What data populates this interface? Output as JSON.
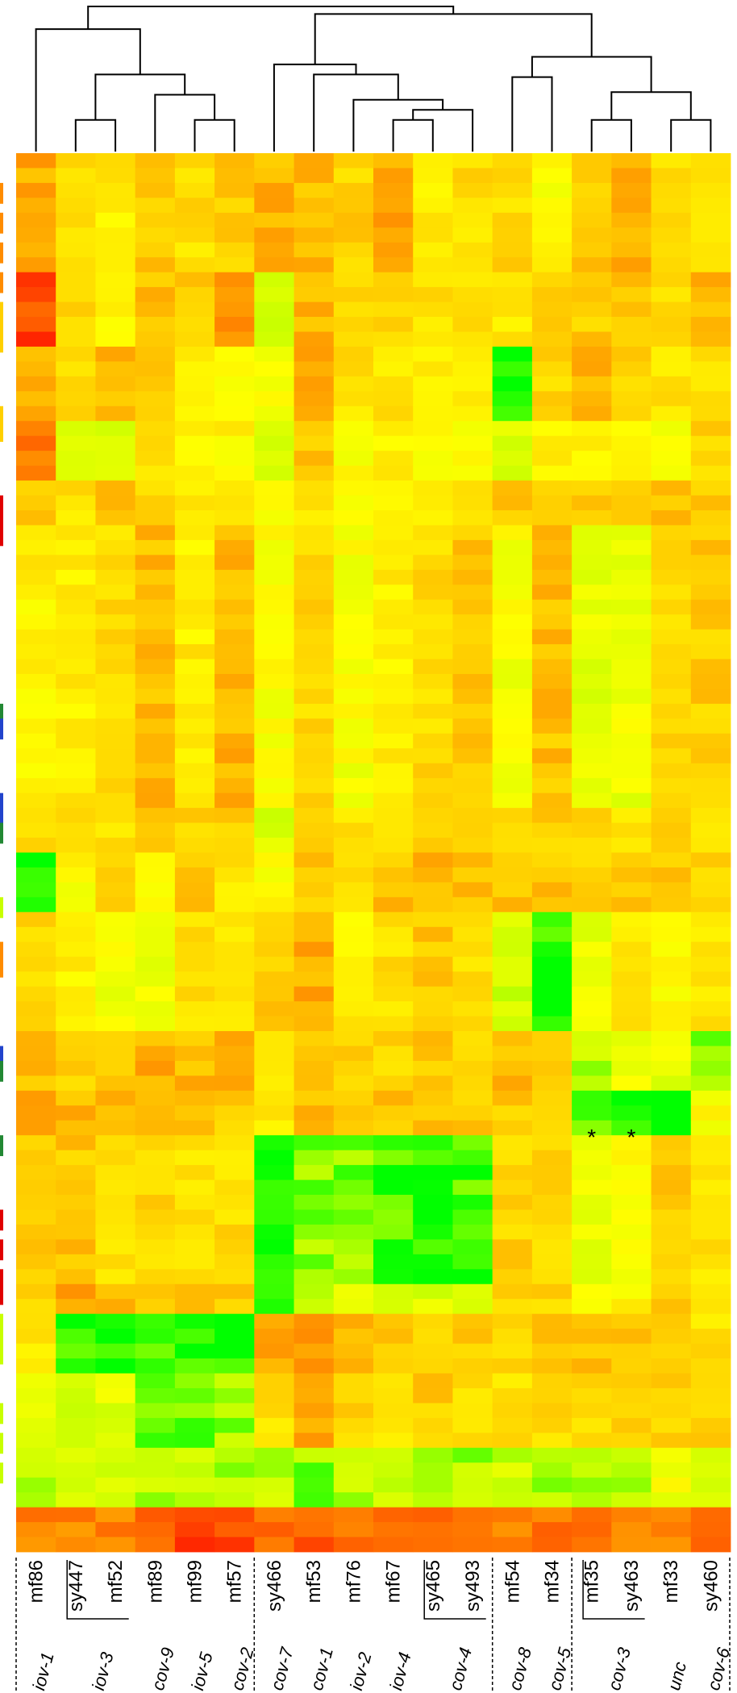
{
  "chart_data": {
    "type": "heatmap",
    "title": "",
    "xlabel": "",
    "ylabel": "",
    "color_scale": [
      "#ff2000",
      "#ff8c00",
      "#ffd000",
      "#ffff00",
      "#c8ff00",
      "#00ff00"
    ],
    "columns": [
      {
        "sample": "mf86",
        "group": "iov-1"
      },
      {
        "sample": "sy447",
        "group": "iov-3"
      },
      {
        "sample": "mf52",
        "group": "iov-3"
      },
      {
        "sample": "mf89",
        "group": "cov-9"
      },
      {
        "sample": "mf99",
        "group": "iov-5"
      },
      {
        "sample": "mf57",
        "group": "cov-2"
      },
      {
        "sample": "sy466",
        "group": "cov-7"
      },
      {
        "sample": "mf53",
        "group": "cov-1"
      },
      {
        "sample": "mf76",
        "group": "iov-2"
      },
      {
        "sample": "mf67",
        "group": "iov-4"
      },
      {
        "sample": "sy465",
        "group": "cov-4"
      },
      {
        "sample": "sy493",
        "group": "cov-4"
      },
      {
        "sample": "mf54",
        "group": "cov-8"
      },
      {
        "sample": "mf34",
        "group": "cov-5"
      },
      {
        "sample": "mf35",
        "group": "cov-3"
      },
      {
        "sample": "sy463",
        "group": "cov-3"
      },
      {
        "sample": "mf33",
        "group": "unc"
      },
      {
        "sample": "sy460",
        "group": "cov-6"
      }
    ],
    "group_labels": [
      {
        "text": "iov-1",
        "cols": [
          0,
          0
        ]
      },
      {
        "text": "iov-3",
        "cols": [
          1,
          2
        ]
      },
      {
        "text": "cov-9",
        "cols": [
          3,
          3
        ]
      },
      {
        "text": "iov-5",
        "cols": [
          4,
          4
        ]
      },
      {
        "text": "cov-2",
        "cols": [
          5,
          5
        ]
      },
      {
        "text": "cov-7",
        "cols": [
          6,
          6
        ]
      },
      {
        "text": "cov-1",
        "cols": [
          7,
          7
        ]
      },
      {
        "text": "iov-2",
        "cols": [
          8,
          8
        ]
      },
      {
        "text": "iov-4",
        "cols": [
          9,
          9
        ]
      },
      {
        "text": "cov-4",
        "cols": [
          10,
          11
        ]
      },
      {
        "text": "cov-8",
        "cols": [
          12,
          12
        ]
      },
      {
        "text": "cov-5",
        "cols": [
          13,
          13
        ]
      },
      {
        "text": "cov-3",
        "cols": [
          14,
          15
        ]
      },
      {
        "text": "unc",
        "cols": [
          16,
          16
        ]
      },
      {
        "text": "cov-6",
        "cols": [
          17,
          17
        ]
      }
    ],
    "dendrogram": {
      "merges": [
        [
          1,
          2,
          0.55
        ],
        [
          4,
          5,
          0.55
        ],
        [
          3,
          9,
          0.65
        ],
        [
          8,
          10,
          0.72
        ],
        [
          0,
          11,
          0.9
        ],
        [
          9,
          10,
          0.55
        ],
        [
          11,
          12,
          0.55
        ],
        [
          14,
          15,
          0.65
        ],
        [
          7,
          16,
          0.72
        ],
        [
          6,
          17,
          0.8
        ],
        [
          14,
          15,
          0.55
        ],
        [
          16,
          17,
          0.55
        ],
        [
          22,
          23,
          0.65
        ],
        [
          12,
          13,
          0.72
        ],
        [
          25,
          24,
          0.8
        ],
        [
          18,
          21,
          0.95
        ],
        [
          26,
          20,
          1.0
        ]
      ],
      "nodes": [
        {
          "id": 18,
          "cols": [
            1,
            2
          ],
          "h": 0.55
        },
        {
          "id": 19,
          "cols": [
            4,
            5
          ],
          "h": 0.55
        },
        {
          "id": 20,
          "cols": [
            3,
            4,
            5
          ],
          "h": 0.65
        },
        {
          "id": 21,
          "cols": [
            1,
            2,
            3,
            4,
            5
          ],
          "h": 0.72
        },
        {
          "id": 22,
          "cols": [
            0,
            1,
            2,
            3,
            4,
            5
          ],
          "h": 0.9
        }
      ],
      "tree": [
        {
          "a": 1,
          "b": 2,
          "h": 0.55,
          "id": "n1"
        },
        {
          "a": 4,
          "b": 5,
          "h": 0.55,
          "id": "n2"
        },
        {
          "a": 3,
          "b": "n2",
          "h": 0.65,
          "id": "n3"
        },
        {
          "a": "n1",
          "b": "n3",
          "h": 0.73,
          "id": "n4"
        },
        {
          "a": 0,
          "b": "n4",
          "h": 0.91,
          "id": "n5"
        },
        {
          "a": 9,
          "b": 10,
          "h": 0.55,
          "id": "n6"
        },
        {
          "a": 11,
          "b": "n6",
          "h": 0.59,
          "id": "n6b"
        },
        {
          "a": 8,
          "b": "n6b",
          "h": 0.63,
          "id": "n7"
        },
        {
          "a": 7,
          "b": "n7",
          "h": 0.73,
          "id": "n8"
        },
        {
          "a": 6,
          "b": "n8",
          "h": 0.77,
          "id": "n9"
        },
        {
          "a": 14,
          "b": 15,
          "h": 0.55,
          "id": "n10"
        },
        {
          "a": 16,
          "b": 17,
          "h": 0.55,
          "id": "n11"
        },
        {
          "a": "n10",
          "b": "n11",
          "h": 0.66,
          "id": "n12"
        },
        {
          "a": 12,
          "b": 13,
          "h": 0.72,
          "id": "n13"
        },
        {
          "a": "n13",
          "b": "n12",
          "h": 0.8,
          "id": "n14"
        },
        {
          "a": "n9",
          "b": "n14",
          "h": 0.97,
          "id": "n15"
        },
        {
          "a": "n5",
          "b": "n15",
          "h": 1.0,
          "id": "n16"
        }
      ]
    },
    "row_side_colors": [
      {
        "row": 2,
        "color": "#ff8c00"
      },
      {
        "row": 4,
        "color": "#ff8c00"
      },
      {
        "row": 6,
        "color": "#ff8c00"
      },
      {
        "row": 8,
        "color": "#ff8c00"
      },
      {
        "row": 10,
        "color": "#ffd000"
      },
      {
        "row": 11,
        "color": "#ffd000"
      },
      {
        "row": 12,
        "color": "#ffd000"
      },
      {
        "row": 17,
        "color": "#ffd000"
      },
      {
        "row": 18,
        "color": "#ffd000"
      },
      {
        "row": 23,
        "color": "#e00000"
      },
      {
        "row": 24,
        "color": "#e00000"
      },
      {
        "row": 25,
        "color": "#e00000"
      },
      {
        "row": 37,
        "color": "#228833"
      },
      {
        "row": 38,
        "color": "#2244cc"
      },
      {
        "row": 43,
        "color": "#2244cc"
      },
      {
        "row": 44,
        "color": "#2244cc"
      },
      {
        "row": 45,
        "color": "#228833"
      },
      {
        "row": 50,
        "color": "#c8ff00"
      },
      {
        "row": 53,
        "color": "#ff8c00"
      },
      {
        "row": 54,
        "color": "#ff8c00"
      },
      {
        "row": 60,
        "color": "#2244cc"
      },
      {
        "row": 61,
        "color": "#228833"
      },
      {
        "row": 66,
        "color": "#228833"
      },
      {
        "row": 71,
        "color": "#e00000"
      },
      {
        "row": 73,
        "color": "#e00000"
      },
      {
        "row": 75,
        "color": "#e00000"
      },
      {
        "row": 76,
        "color": "#e00000"
      },
      {
        "row": 78,
        "color": "#c8ff00"
      },
      {
        "row": 79,
        "color": "#c8ff00"
      },
      {
        "row": 80,
        "color": "#c8ff00"
      },
      {
        "row": 84,
        "color": "#c8ff00"
      },
      {
        "row": 86,
        "color": "#c8ff00"
      },
      {
        "row": 88,
        "color": "#c8ff00"
      }
    ],
    "annotations": [
      {
        "text": "*",
        "col": 14,
        "row": 66
      },
      {
        "text": "*",
        "col": 15,
        "row": 66
      }
    ],
    "num_rows": 94,
    "blocks": [
      {
        "r": [
          0,
          8
        ],
        "v": [
          1.5,
          2.3,
          2.6,
          1.9,
          2.3,
          2.0,
          1.6,
          1.7,
          2.1,
          1.4,
          2.5,
          2.3,
          2.2,
          2.9,
          1.9,
          1.6,
          2.2,
          2.2
        ]
      },
      {
        "r": [
          8,
          13
        ],
        "v": [
          0.3,
          2.3,
          2.7,
          1.8,
          2.1,
          0.9,
          3.7,
          1.6,
          2.3,
          2.1,
          2.4,
          2.2,
          2.6,
          2.2,
          2.0,
          2.0,
          2.2,
          1.6
        ]
      },
      {
        "r": [
          13,
          18
        ],
        "v": [
          1.4,
          2.2,
          1.6,
          2.1,
          2.9,
          3.0,
          3.0,
          1.2,
          2.3,
          2.4,
          2.6,
          2.5,
          5.0,
          2.1,
          1.7,
          2.0,
          2.4,
          2.2
        ]
      },
      {
        "r": [
          18,
          22
        ],
        "v": [
          0.8,
          3.3,
          3.5,
          2.5,
          2.7,
          2.8,
          3.5,
          1.8,
          2.9,
          2.8,
          3.0,
          3.0,
          3.6,
          2.8,
          2.9,
          2.6,
          3.0,
          2.2
        ]
      },
      {
        "r": [
          22,
          25
        ],
        "v": [
          2.0,
          2.4,
          1.9,
          2.2,
          2.4,
          2.3,
          3.1,
          2.6,
          2.8,
          2.7,
          2.7,
          2.7,
          2.0,
          1.9,
          2.0,
          2.0,
          1.8,
          2.0
        ]
      },
      {
        "r": [
          25,
          44
        ],
        "v": [
          2.7,
          2.6,
          2.3,
          1.7,
          2.6,
          1.6,
          3.0,
          2.2,
          3.1,
          2.6,
          2.2,
          1.8,
          3.1,
          1.8,
          3.5,
          3.3,
          2.2,
          2.0
        ]
      },
      {
        "r": [
          44,
          47
        ],
        "v": [
          2.2,
          2.1,
          2.3,
          2.0,
          2.1,
          2.0,
          3.6,
          2.3,
          2.4,
          2.2,
          1.8,
          1.8,
          2.3,
          2.1,
          2.3,
          2.4,
          2.2,
          2.7
        ]
      },
      {
        "r": [
          47,
          51
        ],
        "v": [
          5.0,
          2.9,
          1.8,
          3.0,
          1.9,
          2.5,
          2.9,
          2.0,
          2.2,
          1.8,
          1.7,
          1.8,
          1.8,
          1.9,
          2.1,
          2.0,
          2.0,
          2.1
        ]
      },
      {
        "r": [
          51,
          59
        ],
        "v": [
          2.2,
          2.7,
          3.2,
          3.3,
          2.4,
          2.5,
          1.9,
          1.5,
          2.7,
          2.3,
          1.9,
          2.4,
          3.7,
          4.8,
          3.4,
          2.6,
          2.9,
          2.4
        ]
      },
      {
        "r": [
          59,
          63
        ],
        "v": [
          1.8,
          2.0,
          1.8,
          1.5,
          1.7,
          1.7,
          2.4,
          1.9,
          2.0,
          2.2,
          1.9,
          2.0,
          1.7,
          2.1,
          4.0,
          3.2,
          3.4,
          4.2
        ]
      },
      {
        "r": [
          63,
          66
        ],
        "v": [
          1.6,
          1.6,
          1.6,
          1.4,
          1.6,
          2.0,
          2.6,
          1.8,
          1.9,
          1.9,
          1.8,
          1.9,
          1.9,
          2.0,
          4.5,
          5.0,
          5.0,
          3.0
        ]
      },
      {
        "r": [
          66,
          76
        ],
        "v": [
          2.1,
          1.9,
          2.3,
          2.2,
          2.4,
          2.3,
          4.9,
          4.3,
          4.4,
          4.7,
          4.8,
          4.7,
          2.1,
          2.1,
          3.4,
          3.0,
          2.0,
          2.4
        ]
      },
      {
        "r": [
          76,
          78
        ],
        "v": [
          2.2,
          1.3,
          1.7,
          1.8,
          1.9,
          1.9,
          4.6,
          4.3,
          3.6,
          3.8,
          3.6,
          3.8,
          2.0,
          2.1,
          3.2,
          2.8,
          1.9,
          2.2
        ]
      },
      {
        "r": [
          78,
          82
        ],
        "v": [
          2.6,
          4.8,
          4.8,
          4.8,
          4.9,
          4.8,
          1.5,
          1.4,
          1.8,
          2.0,
          2.2,
          2.0,
          2.1,
          2.0,
          1.8,
          1.8,
          1.9,
          2.4
        ]
      },
      {
        "r": [
          82,
          87
        ],
        "v": [
          3.6,
          3.8,
          3.5,
          4.4,
          4.5,
          4.2,
          2.4,
          1.3,
          2.1,
          2.4,
          2.0,
          2.2,
          2.4,
          2.3,
          2.2,
          2.2,
          2.0,
          2.2
        ]
      },
      {
        "r": [
          87,
          91
        ],
        "v": [
          3.9,
          3.8,
          3.6,
          4.0,
          3.8,
          4.1,
          3.9,
          4.3,
          4.0,
          3.9,
          4.2,
          4.1,
          3.8,
          4.2,
          4.0,
          3.9,
          3.2,
          3.6
        ]
      },
      {
        "r": [
          91,
          94
        ],
        "v": [
          1.0,
          0.9,
          1.0,
          0.6,
          0.4,
          0.4,
          0.5,
          0.4,
          0.6,
          0.6,
          0.5,
          0.7,
          0.8,
          0.7,
          0.9,
          0.8,
          1.2,
          1.0
        ]
      }
    ]
  }
}
